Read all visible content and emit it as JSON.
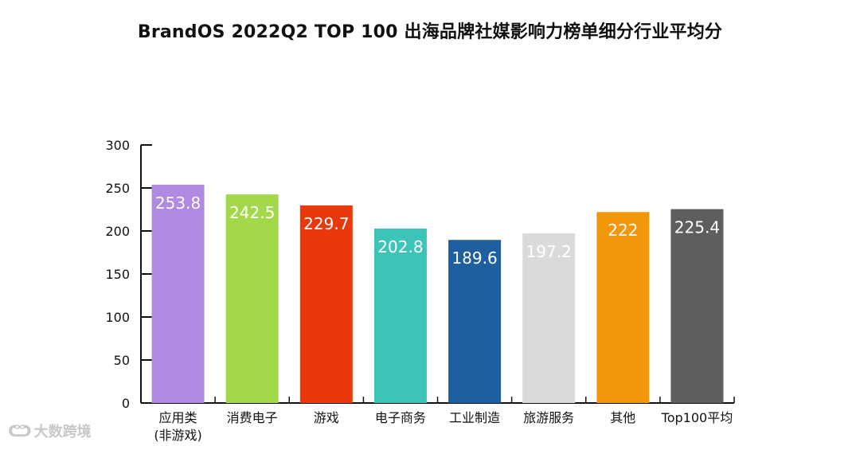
{
  "title": "BrandOS 2022Q2 TOP 100 出海品牌社媒影响力榜单细分行业平均分",
  "watermark": {
    "icon": "dashujuajing-logo-icon",
    "text": "大数跨境"
  },
  "chart_data": {
    "type": "bar",
    "title": "BrandOS 2022Q2 TOP 100 出海品牌社媒影响力榜单细分行业平均分",
    "xlabel": "",
    "ylabel": "",
    "ylim": [
      0,
      300
    ],
    "yticks": [
      0,
      50,
      100,
      150,
      200,
      250,
      300
    ],
    "grid": false,
    "legend": "none",
    "categories": [
      [
        "应用类",
        "(非游戏)"
      ],
      [
        "消费电子"
      ],
      [
        "游戏"
      ],
      [
        "电子商务"
      ],
      [
        "工业制造"
      ],
      [
        "旅游服务"
      ],
      [
        "其他"
      ],
      [
        "Top100平均"
      ]
    ],
    "values": [
      253.8,
      242.5,
      229.7,
      202.8,
      189.6,
      197.2,
      222,
      225.4
    ],
    "data_labels": [
      "253.8",
      "242.5",
      "229.7",
      "202.8",
      "189.6",
      "197.2",
      "222",
      "225.4"
    ],
    "colors": [
      "#b189e3",
      "#a3d84a",
      "#e8380c",
      "#3cc4b8",
      "#1f5fa0",
      "#dadada",
      "#f2960c",
      "#5e5e5e"
    ],
    "label_color": "#ffffff",
    "axis_color": "#111111"
  }
}
